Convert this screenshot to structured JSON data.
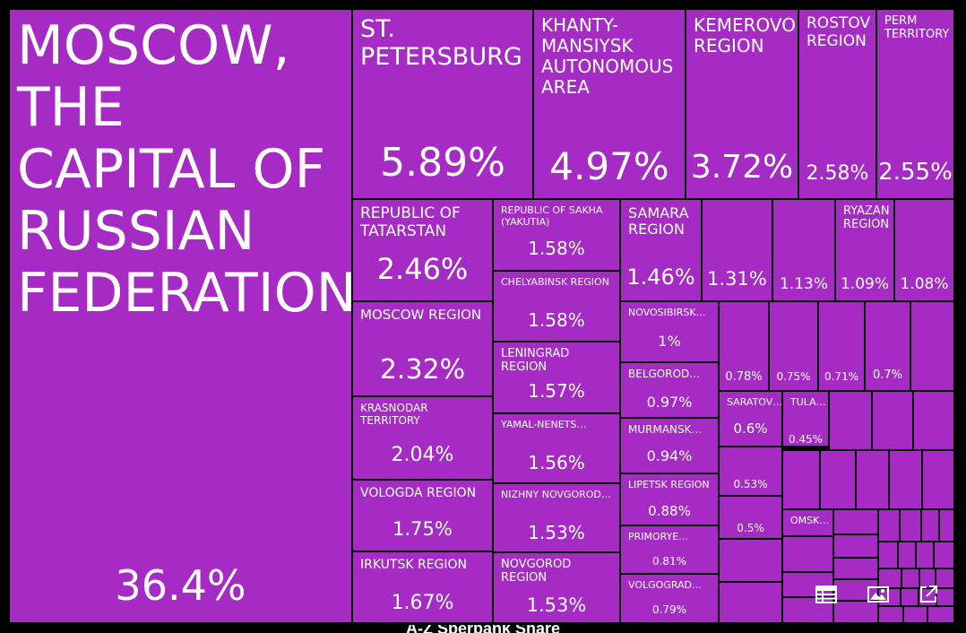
{
  "chart_data": {
    "type": "treemap",
    "tiles": [
      {
        "name": "Moscow, the capital of Russian Federation",
        "label": "MOSCOW, THE CAPITAL OF RUSSIAN FEDERATION",
        "value": "36.4%"
      },
      {
        "name": "St. Petersburg",
        "label": "ST. PETERSBURG",
        "value": "5.89%"
      },
      {
        "name": "Khanty-Mansiysk Autonomous Area",
        "label": "KHANTY-MANSIYSK AUTONOMOUS AREA",
        "value": "4.97%"
      },
      {
        "name": "Kemerovo Region",
        "label": "KEMEROVO REGION",
        "value": "3.72%"
      },
      {
        "name": "Rostov Region",
        "label": "ROSTOV REGION",
        "value": "2.58%"
      },
      {
        "name": "Perm Territory",
        "label": "PERM TERRITORY",
        "value": "2.55%"
      },
      {
        "name": "Republic of Tatarstan",
        "label": "REPUBLIC OF TATARSTAN",
        "value": "2.46%"
      },
      {
        "name": "Republic of Sakha (Yakutia)",
        "label": "REPUBLIC OF SAKHA (YAKUTIA)",
        "value": "1.58%"
      },
      {
        "name": "Samara Region",
        "label": "SAMARA REGION",
        "value": "1.46%"
      },
      {
        "name": "",
        "label": "",
        "value": "1.31%"
      },
      {
        "name": "",
        "label": "",
        "value": "1.13%"
      },
      {
        "name": "Ryazan Region",
        "label": "RYAZAN REGION",
        "value": "1.09%"
      },
      {
        "name": "",
        "label": "",
        "value": "1.08%"
      },
      {
        "name": "Chelyabinsk Region",
        "label": "CHELYABINSK REGION",
        "value": "1.58%"
      },
      {
        "name": "Moscow Region",
        "label": "MOSCOW REGION",
        "value": "2.32%"
      },
      {
        "name": "Novosibirsk…",
        "label": "NOVOSIBIRSK…",
        "value": "1%"
      },
      {
        "name": "Leningrad Region",
        "label": "LENINGRAD REGION",
        "value": "1.57%"
      },
      {
        "name": "",
        "label": "",
        "value": "0.78%"
      },
      {
        "name": "",
        "label": "",
        "value": "0.75%"
      },
      {
        "name": "",
        "label": "",
        "value": "0.71%"
      },
      {
        "name": "",
        "label": "",
        "value": "0.7%"
      },
      {
        "name": "Belgorod…",
        "label": "BELGOROD…",
        "value": "0.97%"
      },
      {
        "name": "Krasnodar Territory",
        "label": "KRASNODAR TERRITORY",
        "value": "2.04%"
      },
      {
        "name": "Yamal-Nenets…",
        "label": "YAMAL-NENETS…",
        "value": "1.56%"
      },
      {
        "name": "Saratov…",
        "label": "SARATOV…",
        "value": "0.6%"
      },
      {
        "name": "Tula…",
        "label": "TULA…",
        "value": "0.45%"
      },
      {
        "name": "Murmansk…",
        "label": "MURMANSK…",
        "value": "0.94%"
      },
      {
        "name": "",
        "label": "",
        "value": "0.53%"
      },
      {
        "name": "Vologda Region",
        "label": "VOLOGDA REGION",
        "value": "1.75%"
      },
      {
        "name": "Nizhny Novgorod…",
        "label": "NIZHNY NOVGOROD…",
        "value": "1.53%"
      },
      {
        "name": "Lipetsk Region",
        "label": "LIPETSK REGION",
        "value": "0.88%"
      },
      {
        "name": "",
        "label": "",
        "value": "0.5%"
      },
      {
        "name": "Omsk…",
        "label": "OMSK…",
        "value": ""
      },
      {
        "name": "Primorye…",
        "label": "PRIMORYE…",
        "value": "0.81%"
      },
      {
        "name": "Irkutsk Region",
        "label": "IRKUTSK REGION",
        "value": "1.67%"
      },
      {
        "name": "Novgorod Region",
        "label": "NOVGOROD REGION",
        "value": "1.53%"
      },
      {
        "name": "Volgograd…",
        "label": "VOLGOGRAD…",
        "value": "0.79%"
      }
    ]
  },
  "footer_text": "A-Z  Sberbank  Share",
  "colors": {
    "tile": "#a62bc4",
    "border": "#000000",
    "text": "#ffffff"
  },
  "icons": [
    "table-icon",
    "image-icon",
    "external-link-icon"
  ]
}
